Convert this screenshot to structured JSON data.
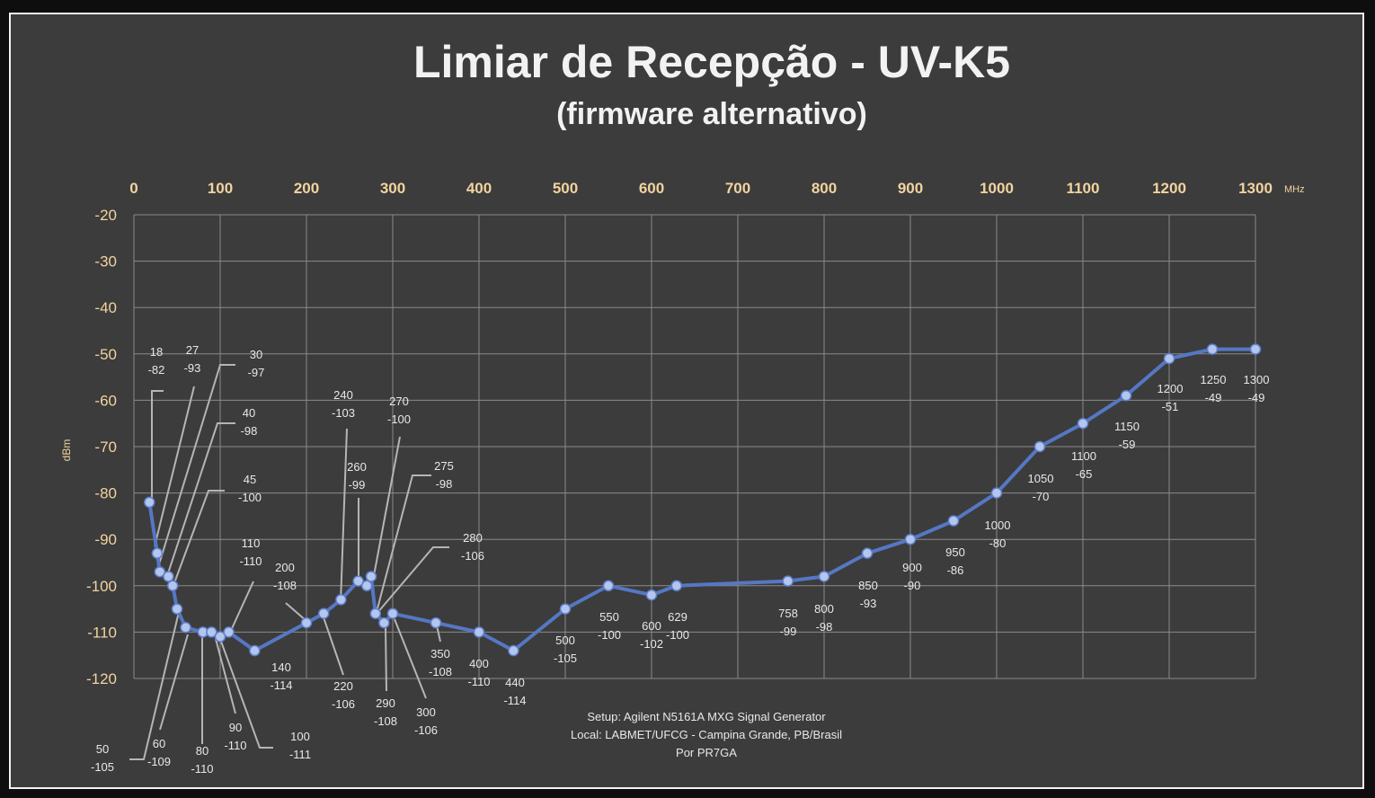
{
  "chart_data": {
    "type": "line",
    "title": "Limiar de Recepção - UV-K5",
    "subtitle": "(firmware alternativo)",
    "xlabel": "",
    "x_unit": "MHz",
    "ylabel": "dBm",
    "xlim": [
      0,
      1300
    ],
    "ylim": [
      -120,
      -20
    ],
    "x_ticks": [
      "0",
      "100",
      "200",
      "300",
      "400",
      "500",
      "600",
      "700",
      "800",
      "900",
      "1000",
      "1100",
      "1200",
      "1300"
    ],
    "y_ticks": [
      "-20",
      "-30",
      "-40",
      "-50",
      "-60",
      "-70",
      "-80",
      "-90",
      "-100",
      "-110",
      "-120"
    ],
    "x_tick_values": [
      0,
      100,
      200,
      300,
      400,
      500,
      600,
      700,
      800,
      900,
      1000,
      1100,
      1200,
      1300
    ],
    "y_tick_values": [
      -20,
      -30,
      -40,
      -50,
      -60,
      -70,
      -80,
      -90,
      -100,
      -110,
      -120
    ],
    "grid": true,
    "x_axis_position": "top",
    "colors": {
      "series": "#5577c4",
      "marker": "#b4c6ee",
      "background": "#3c3c3c",
      "ticks": "#f2d3a0"
    },
    "series": [
      {
        "x": [
          18,
          27,
          30,
          40,
          45,
          50,
          60,
          80,
          90,
          100,
          110,
          140,
          200,
          220,
          240,
          260,
          270,
          275,
          280,
          290,
          300,
          350,
          400,
          440,
          500,
          550,
          600,
          629,
          758,
          800,
          850,
          900,
          950,
          1000,
          1050,
          1100,
          1150,
          1200,
          1250,
          1300
        ],
        "y": [
          -82,
          -93,
          -97,
          -98,
          -100,
          -105,
          -109,
          -110,
          -110,
          -111,
          -110,
          -114,
          -108,
          -106,
          -103,
          -99,
          -100,
          -98,
          -106,
          -108,
          -106,
          -108,
          -110,
          -114,
          -105,
          -100,
          -102,
          -100,
          -99,
          -98,
          -93,
          -90,
          -86,
          -80,
          -70,
          -65,
          -59,
          -51,
          -49,
          -49
        ]
      }
    ],
    "annotations": [
      "Setup: Agilent N5161A MXG Signal Generator",
      "Local: LABMET/UFCG - Campina Grande, PB/Brasil",
      "Por PR7GA"
    ]
  }
}
